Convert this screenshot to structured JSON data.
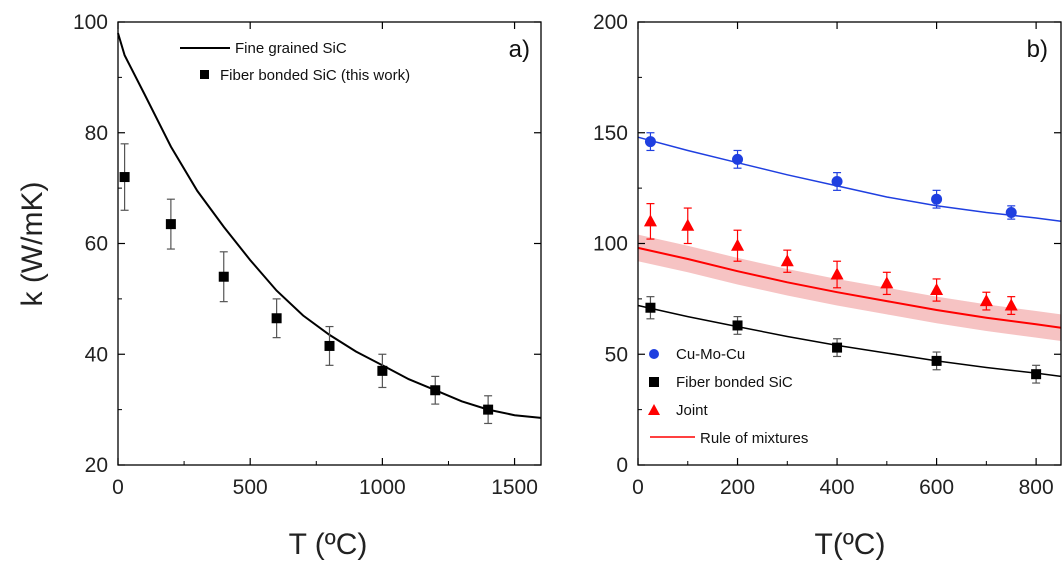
{
  "chart_data": [
    {
      "type": "scatter",
      "panel_label": "a)",
      "xlabel": "T (ºC)",
      "ylabel": "k (W/mK)",
      "xlim": [
        0,
        1600
      ],
      "ylim": [
        20,
        100
      ],
      "xticks": [
        0,
        500,
        1000,
        1500
      ],
      "yticks": [
        20,
        40,
        60,
        80,
        100
      ],
      "legend_position": "top-right",
      "series": [
        {
          "name": "Fine grained SiC",
          "kind": "line",
          "color": "#000000",
          "x": [
            0,
            25,
            100,
            200,
            300,
            400,
            500,
            600,
            700,
            800,
            900,
            1000,
            1100,
            1200,
            1300,
            1400,
            1500,
            1600
          ],
          "y": [
            98,
            94,
            87,
            77.5,
            69.5,
            63,
            57,
            51.5,
            47,
            43.5,
            40.5,
            38,
            35.5,
            33.5,
            31.5,
            30,
            29,
            28.5
          ]
        },
        {
          "name": "Fiber bonded SiC (this work)",
          "kind": "marker",
          "marker": "square",
          "color": "#000000",
          "x": [
            25,
            200,
            400,
            600,
            800,
            1000,
            1200,
            1400
          ],
          "y": [
            72,
            63.5,
            54,
            46.5,
            41.5,
            37,
            33.5,
            30
          ],
          "err": [
            6,
            4.5,
            4.5,
            3.5,
            3.5,
            3,
            2.5,
            2.5
          ]
        }
      ]
    },
    {
      "type": "scatter",
      "panel_label": "b)",
      "xlabel": "T(ºC)",
      "ylabel": "",
      "xlim": [
        0,
        850
      ],
      "ylim": [
        0,
        200
      ],
      "xticks": [
        0,
        200,
        400,
        600,
        800
      ],
      "yticks": [
        0,
        50,
        100,
        150,
        200
      ],
      "legend_position": "bottom-left",
      "band": {
        "color": "#f4b9b9",
        "x": [
          0,
          100,
          200,
          300,
          400,
          500,
          600,
          700,
          800,
          850
        ],
        "upper": [
          104,
          99,
          93.5,
          88.5,
          84,
          80,
          76,
          72.5,
          69.5,
          68
        ],
        "lower": [
          92,
          87,
          81.5,
          76.5,
          72,
          68,
          64,
          60.5,
          57.5,
          56
        ]
      },
      "series": [
        {
          "name": "Cu-Mo-Cu",
          "kind": "marker+line",
          "marker": "circle",
          "color": "#1f3fe0",
          "x": [
            25,
            200,
            400,
            600,
            750
          ],
          "y": [
            146,
            138,
            128,
            120,
            114
          ],
          "err": [
            4,
            4,
            4,
            4,
            3
          ],
          "fit_x": [
            0,
            100,
            200,
            300,
            400,
            500,
            600,
            700,
            800,
            850
          ],
          "fit_y": [
            148,
            142,
            136.5,
            131,
            126,
            121,
            117,
            114,
            111.5,
            110
          ]
        },
        {
          "name": "Fiber bonded SiC",
          "kind": "marker+line",
          "marker": "square",
          "color": "#000000",
          "x": [
            25,
            200,
            400,
            600,
            800
          ],
          "y": [
            71,
            63,
            53,
            47,
            41
          ],
          "err": [
            5,
            4,
            4,
            4,
            4
          ],
          "fit_x": [
            0,
            100,
            200,
            300,
            400,
            500,
            600,
            700,
            800,
            850
          ],
          "fit_y": [
            72,
            67,
            62.5,
            58,
            54,
            50.5,
            47,
            44,
            41.5,
            40
          ]
        },
        {
          "name": "Joint",
          "kind": "marker",
          "marker": "triangle",
          "color": "#ff0000",
          "x": [
            25,
            100,
            200,
            300,
            400,
            500,
            600,
            700,
            750
          ],
          "y": [
            110,
            108,
            99,
            92,
            86,
            82,
            79,
            74,
            72
          ],
          "err": [
            8,
            8,
            7,
            5,
            6,
            5,
            5,
            4,
            4
          ]
        },
        {
          "name": "Rule of mixtures",
          "kind": "line",
          "color": "#ff0000",
          "x": [
            0,
            100,
            200,
            300,
            400,
            500,
            600,
            700,
            800,
            850
          ],
          "y": [
            98,
            93,
            87.5,
            82.5,
            78,
            74,
            70,
            66.5,
            63.5,
            62
          ]
        }
      ]
    }
  ]
}
